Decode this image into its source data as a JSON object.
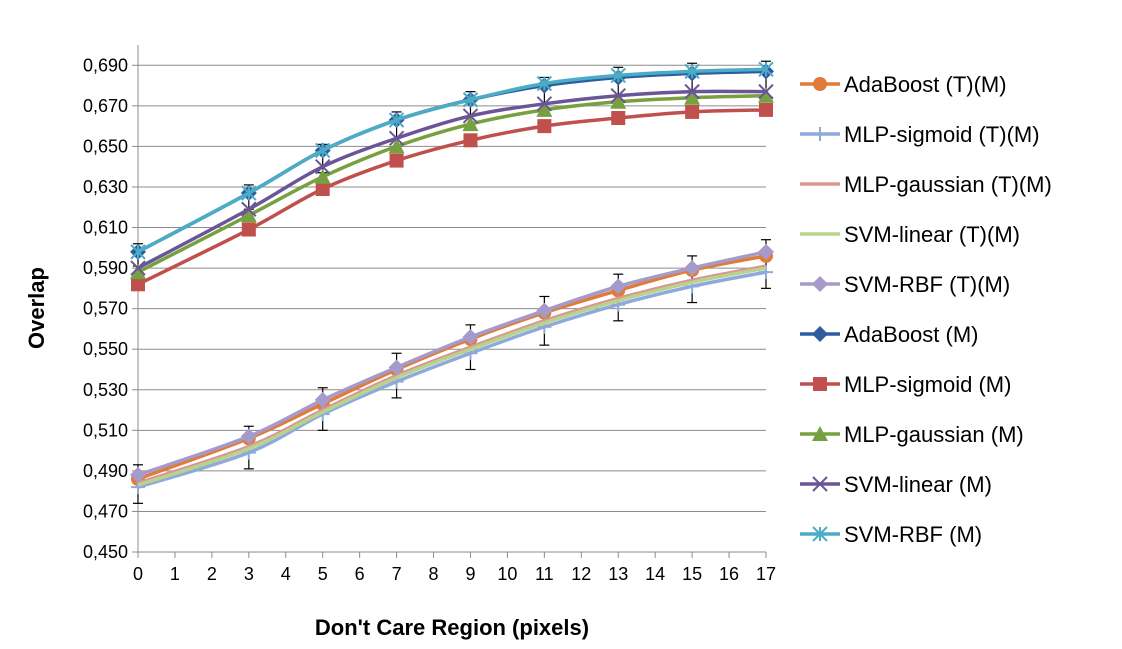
{
  "chart_data": {
    "type": "line",
    "title": "",
    "xlabel": "Don't Care Region (pixels)",
    "ylabel": "Overlap",
    "x_ticks": [
      "0",
      "1",
      "2",
      "3",
      "4",
      "5",
      "6",
      "7",
      "8",
      "9",
      "10",
      "11",
      "12",
      "13",
      "14",
      "15",
      "16",
      "17"
    ],
    "y_ticks": [
      "0,450",
      "0,470",
      "0,490",
      "0,510",
      "0,530",
      "0,550",
      "0,570",
      "0,590",
      "0,610",
      "0,630",
      "0,650",
      "0,670",
      "0,690"
    ],
    "ylim": [
      0.45,
      0.7
    ],
    "xlim": [
      0,
      17
    ],
    "grid": "horizontal",
    "legend_position": "right",
    "x": [
      0,
      3,
      5,
      7,
      9,
      11,
      13,
      15,
      17
    ],
    "series": [
      {
        "name": "AdaBoost (T)(M)",
        "color": "#E07B39",
        "marker": "circle",
        "values": [
          0.486,
          0.506,
          0.523,
          0.54,
          0.555,
          0.568,
          0.579,
          0.589,
          0.596
        ]
      },
      {
        "name": "MLP-sigmoid (T)(M)",
        "color": "#8EA9DB",
        "marker": "plus",
        "values": [
          0.482,
          0.499,
          0.518,
          0.534,
          0.548,
          0.561,
          0.572,
          0.581,
          0.588
        ]
      },
      {
        "name": "MLP-gaussian (T)(M)",
        "color": "#D99694",
        "marker": "none",
        "values": [
          0.484,
          0.502,
          0.52,
          0.537,
          0.551,
          0.564,
          0.575,
          0.584,
          0.591
        ]
      },
      {
        "name": "SVM-linear (T)(M)",
        "color": "#B8D48C",
        "marker": "none",
        "values": [
          0.483,
          0.501,
          0.519,
          0.536,
          0.55,
          0.563,
          0.574,
          0.583,
          0.59
        ]
      },
      {
        "name": "SVM-RBF (T)(M)",
        "color": "#A59AC9",
        "marker": "diamond",
        "values": [
          0.488,
          0.507,
          0.525,
          0.541,
          0.556,
          0.569,
          0.581,
          0.59,
          0.598
        ]
      },
      {
        "name": "AdaBoost (M)",
        "color": "#2E5C9E",
        "marker": "diamond",
        "values": [
          0.598,
          0.627,
          0.648,
          0.663,
          0.673,
          0.68,
          0.684,
          0.686,
          0.687
        ]
      },
      {
        "name": "MLP-sigmoid (M)",
        "color": "#C0504D",
        "marker": "square",
        "values": [
          0.582,
          0.609,
          0.629,
          0.643,
          0.653,
          0.66,
          0.664,
          0.667,
          0.668
        ]
      },
      {
        "name": "MLP-gaussian (M)",
        "color": "#77A040",
        "marker": "triangle",
        "values": [
          0.588,
          0.616,
          0.635,
          0.65,
          0.661,
          0.668,
          0.672,
          0.674,
          0.675
        ]
      },
      {
        "name": "SVM-linear (M)",
        "color": "#6A5596",
        "marker": "x",
        "values": [
          0.59,
          0.619,
          0.64,
          0.654,
          0.665,
          0.671,
          0.675,
          0.677,
          0.677
        ]
      },
      {
        "name": "SVM-RBF (M)",
        "color": "#4BACC6",
        "marker": "star",
        "values": [
          0.598,
          0.627,
          0.648,
          0.663,
          0.673,
          0.681,
          0.685,
          0.687,
          0.688
        ]
      }
    ],
    "error_bars": {
      "x": [
        0,
        3,
        5,
        7,
        9,
        11,
        13,
        15,
        17
      ],
      "upper_group": {
        "tops": [
          0.602,
          0.631,
          0.651,
          0.667,
          0.677,
          0.684,
          0.689,
          0.691,
          0.692
        ],
        "bottoms": [
          0.591,
          0.619,
          0.637,
          0.65,
          0.66,
          0.667,
          0.671,
          0.673,
          0.673
        ]
      },
      "lower_group": {
        "tops": [
          0.493,
          0.512,
          0.531,
          0.548,
          0.562,
          0.576,
          0.587,
          0.596,
          0.604
        ],
        "bottoms": [
          0.474,
          0.491,
          0.51,
          0.526,
          0.54,
          0.552,
          0.564,
          0.573,
          0.58
        ]
      }
    }
  }
}
